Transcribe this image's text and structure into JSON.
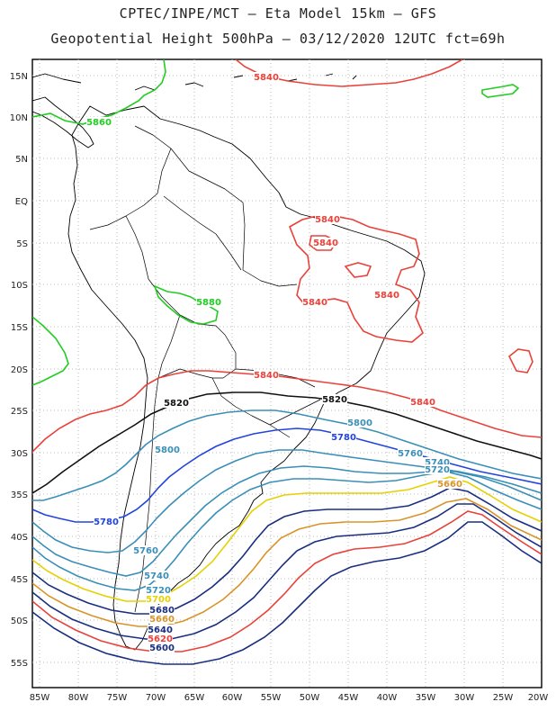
{
  "title": {
    "line1": "CPTEC/INPE/MCT –  Eta Model 15km – GFS",
    "line2": "Geopotential Height 500hPa – 03/12/2020 12UTC fct=69h"
  },
  "map": {
    "lon_range": [
      -86,
      -20
    ],
    "lat_range": [
      -58,
      16
    ],
    "lat_ticks": [
      "15N",
      "10N",
      "5N",
      "EQ",
      "5S",
      "10S",
      "15S",
      "20S",
      "25S",
      "30S",
      "35S",
      "40S",
      "45S",
      "50S",
      "55S"
    ],
    "lon_ticks": [
      "85W",
      "80W",
      "75W",
      "70W",
      "65W",
      "60W",
      "55W",
      "50W",
      "45W",
      "40W",
      "35W",
      "30W",
      "25W",
      "20W"
    ]
  },
  "contour_labels": [
    {
      "text": "5840",
      "color": "#e8423a"
    },
    {
      "text": "5860",
      "color": "#22cc22"
    },
    {
      "text": "5840",
      "color": "#e8423a"
    },
    {
      "text": "5840",
      "color": "#e8423a"
    },
    {
      "text": "5880",
      "color": "#22cc22"
    },
    {
      "text": "5840",
      "color": "#e8423a"
    },
    {
      "text": "5840",
      "color": "#e8423a"
    },
    {
      "text": "5840",
      "color": "#e8423a"
    },
    {
      "text": "5840",
      "color": "#e8423a"
    },
    {
      "text": "5820",
      "color": "#111111"
    },
    {
      "text": "5820",
      "color": "#111111"
    },
    {
      "text": "5800",
      "color": "#3a8fb7"
    },
    {
      "text": "5800",
      "color": "#3a8fb7"
    },
    {
      "text": "5780",
      "color": "#2244dd"
    },
    {
      "text": "5780",
      "color": "#2244dd"
    },
    {
      "text": "5760",
      "color": "#3a8fb7"
    },
    {
      "text": "5760",
      "color": "#3a8fb7"
    },
    {
      "text": "5740",
      "color": "#3a8fb7"
    },
    {
      "text": "5740",
      "color": "#3a8fb7"
    },
    {
      "text": "5720",
      "color": "#3a8fb7"
    },
    {
      "text": "5720",
      "color": "#3a8fb7"
    },
    {
      "text": "5700",
      "color": "#e6d100"
    },
    {
      "text": "5680",
      "color": "#1a2e80"
    },
    {
      "text": "5660",
      "color": "#d8942a"
    },
    {
      "text": "5640",
      "color": "#1a2e80"
    },
    {
      "text": "5620",
      "color": "#e8423a"
    },
    {
      "text": "5600",
      "color": "#1a2e80"
    },
    {
      "text": "5660",
      "color": "#d8942a"
    }
  ],
  "colors": {
    "green": "#22cc22",
    "red": "#e8423a",
    "black": "#111111",
    "teal": "#3a8fb7",
    "blue": "#2244dd",
    "yellow": "#e6d100",
    "orange": "#d8942a",
    "navy": "#1a2e80"
  }
}
